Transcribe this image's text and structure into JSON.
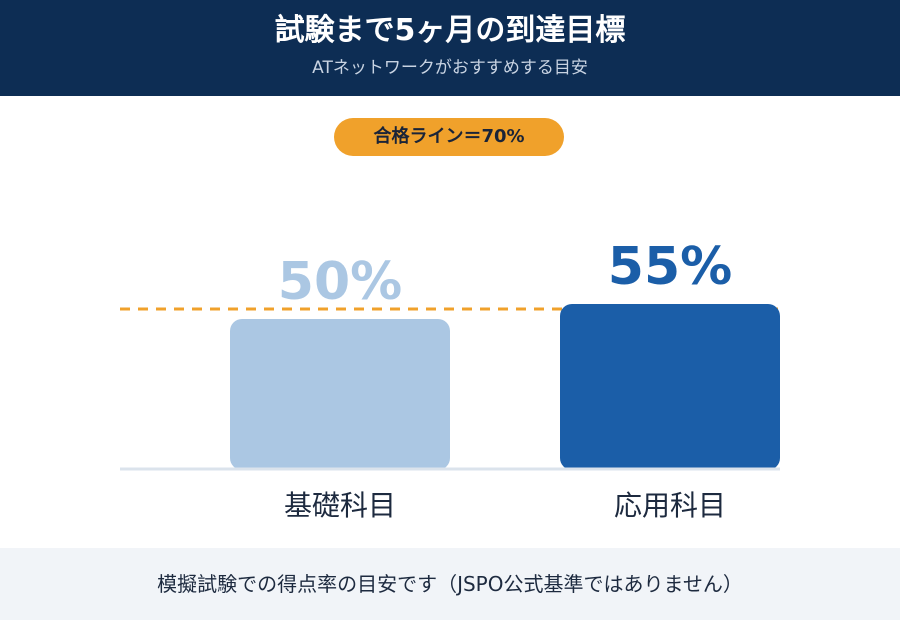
{
  "header": {
    "title": "試験まで5ヶ月の到達目標",
    "subtitle": "ATネットワークがおすすめする目安"
  },
  "pass_line": {
    "label": "合格ライン＝70%",
    "color": "#f0a12b"
  },
  "chart_data": {
    "type": "bar",
    "categories": [
      "基礎科目",
      "応用科目"
    ],
    "values": [
      50,
      55
    ],
    "value_labels": [
      "50%",
      "55%"
    ],
    "colors": [
      "#abc7e3",
      "#1b5ea8"
    ],
    "label_colors": [
      "#abc7e3",
      "#1b5ea8"
    ],
    "reference_line": {
      "value": 70,
      "style": "dashed"
    },
    "grid": false
  },
  "footer": {
    "note": "模擬試験での得点率の目安です（JSPO公式基準ではありません）"
  }
}
